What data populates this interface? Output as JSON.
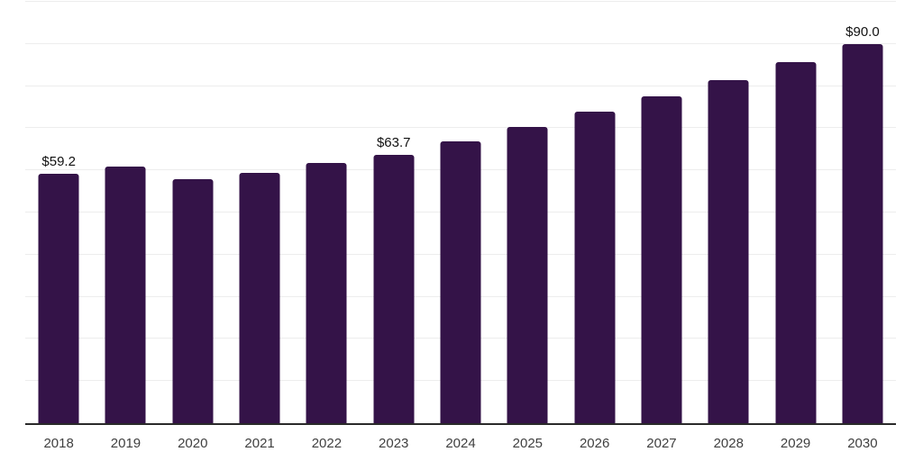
{
  "chart_data": {
    "type": "bar",
    "title": "",
    "xlabel": "",
    "ylabel": "",
    "legend": "none",
    "grid": "horizontal",
    "categories": [
      "2018",
      "2019",
      "2020",
      "2021",
      "2022",
      "2023",
      "2024",
      "2025",
      "2026",
      "2027",
      "2028",
      "2029",
      "2030"
    ],
    "values": [
      59.2,
      61.0,
      58.0,
      59.4,
      61.8,
      63.7,
      66.9,
      70.3,
      73.9,
      77.6,
      81.5,
      85.7,
      90.0
    ],
    "data_labels": {
      "2018": "$59.2",
      "2023": "$63.7",
      "2030": "$90.0"
    },
    "ylim": [
      0,
      100
    ],
    "grid_interval": 10,
    "colors": {
      "bar": "#341348",
      "gridline": "#ededed",
      "axis_line": "#2a2a2a",
      "x_tick_label": "#404040",
      "value_label": "#111111",
      "background": "#ffffff"
    }
  }
}
